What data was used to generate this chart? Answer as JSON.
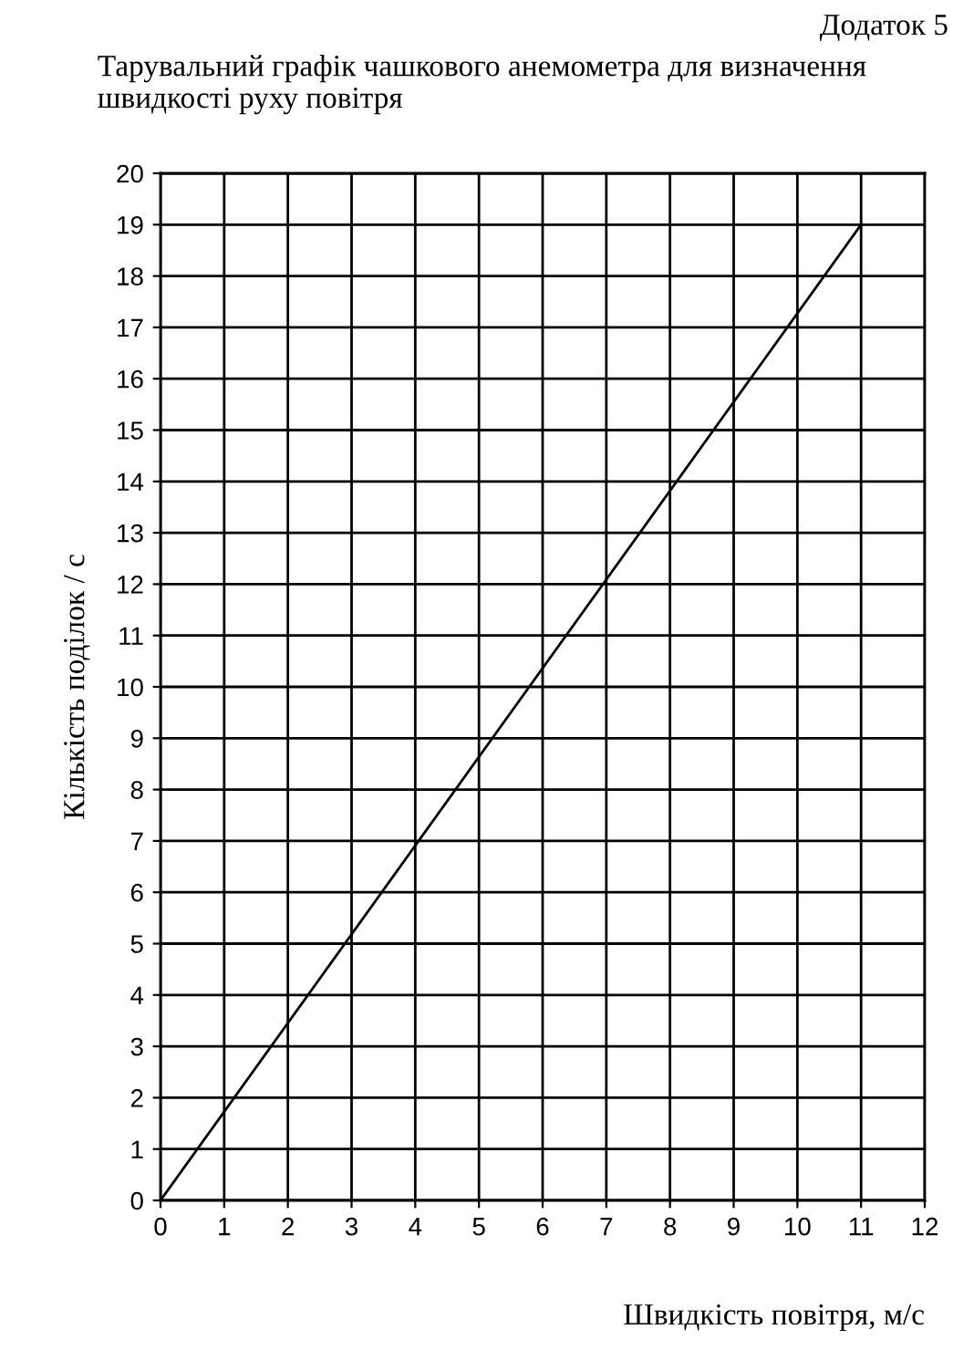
{
  "chart_data": {
    "type": "line",
    "title": "Тарувальний графік чашкового анемометра для визначення швидкості руху повітря",
    "annotations": [
      "Додаток 5"
    ],
    "xlabel": "Швидкість повітря, м/с",
    "ylabel": "Кількість поділок / с",
    "series": [
      {
        "color": "#000000",
        "x": [
          0,
          11
        ],
        "values": [
          0,
          19
        ]
      }
    ],
    "xlim": [
      0,
      12
    ],
    "xticks": [
      0,
      1,
      2,
      3,
      4,
      5,
      6,
      7,
      8,
      9,
      10,
      11,
      12
    ],
    "ylim": [
      0,
      20
    ],
    "yticks": [
      0,
      1,
      2,
      3,
      4,
      5,
      6,
      7,
      8,
      9,
      10,
      11,
      12,
      13,
      14,
      15,
      16,
      17,
      18,
      19,
      20
    ],
    "grid": true,
    "legend": false,
    "marker": "none",
    "line_style": "solid"
  }
}
